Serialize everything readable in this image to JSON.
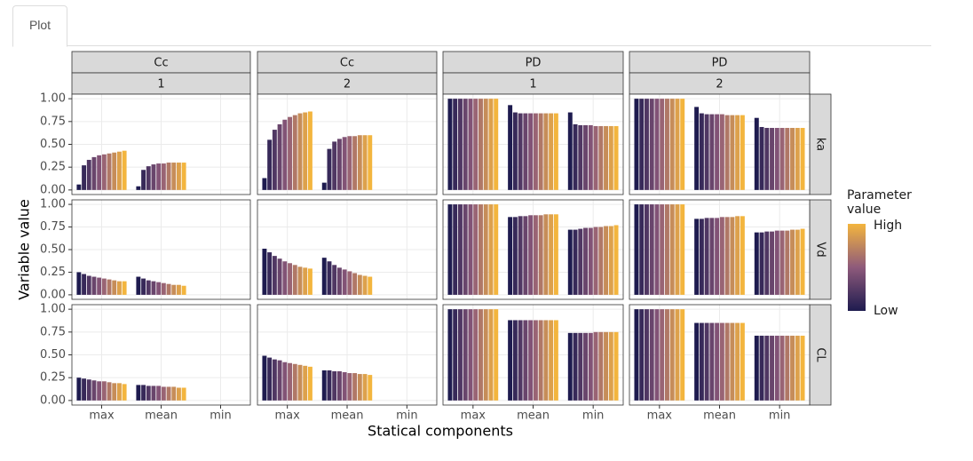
{
  "tab": "Plot",
  "chart_data": {
    "type": "bar",
    "x_label": "Statical components",
    "y_label": "Variable value",
    "columns": [
      {
        "label": "Cc",
        "sublabel": "1"
      },
      {
        "label": "Cc",
        "sublabel": "2"
      },
      {
        "label": "PD",
        "sublabel": "1"
      },
      {
        "label": "PD",
        "sublabel": "2"
      }
    ],
    "rows": [
      "ka",
      "Vd",
      "CL"
    ],
    "categories": [
      "max",
      "mean",
      "min"
    ],
    "ylim": [
      -0.05,
      1.05
    ],
    "yticks": [
      {
        "value": 0,
        "label": "0.00"
      },
      {
        "value": 0.25,
        "label": "0.25"
      },
      {
        "value": 0.5,
        "label": "0.50"
      },
      {
        "value": 0.75,
        "label": "0.75"
      },
      {
        "value": 1,
        "label": "1.00"
      }
    ],
    "grid": true,
    "legend": {
      "title": "Parameter value",
      "high": "High",
      "low": "Low",
      "colors": [
        "#1e1b4f",
        "#8e5a7b",
        "#f3b53e"
      ]
    },
    "panels": [
      [
        [
          [
            0.06,
            0.27,
            0.33,
            0.36,
            0.38,
            0.39,
            0.4,
            0.41,
            0.42,
            0.43
          ],
          [
            0.04,
            0.22,
            0.26,
            0.28,
            0.29,
            0.29,
            0.3,
            0.3,
            0.3,
            0.3
          ],
          [
            0,
            0,
            0,
            0,
            0,
            0,
            0,
            0,
            0,
            0
          ]
        ],
        [
          [
            0.13,
            0.55,
            0.66,
            0.72,
            0.77,
            0.8,
            0.82,
            0.84,
            0.85,
            0.86
          ],
          [
            0.08,
            0.45,
            0.53,
            0.56,
            0.58,
            0.59,
            0.59,
            0.6,
            0.6,
            0.6
          ],
          [
            0,
            0,
            0,
            0,
            0,
            0,
            0,
            0,
            0,
            0
          ]
        ],
        [
          [
            1,
            1,
            1,
            1,
            1,
            1,
            1,
            1,
            1,
            1
          ],
          [
            0.93,
            0.85,
            0.84,
            0.84,
            0.84,
            0.84,
            0.84,
            0.84,
            0.84,
            0.84
          ],
          [
            0.85,
            0.72,
            0.71,
            0.71,
            0.71,
            0.7,
            0.7,
            0.7,
            0.7,
            0.7
          ]
        ],
        [
          [
            1,
            1,
            1,
            1,
            1,
            1,
            1,
            1,
            1,
            1
          ],
          [
            0.91,
            0.84,
            0.83,
            0.83,
            0.83,
            0.83,
            0.82,
            0.82,
            0.82,
            0.82
          ],
          [
            0.79,
            0.69,
            0.68,
            0.68,
            0.68,
            0.68,
            0.68,
            0.68,
            0.68,
            0.68
          ]
        ]
      ],
      [
        [
          [
            0.25,
            0.23,
            0.21,
            0.2,
            0.19,
            0.18,
            0.17,
            0.16,
            0.15,
            0.15
          ],
          [
            0.2,
            0.18,
            0.16,
            0.15,
            0.14,
            0.13,
            0.12,
            0.11,
            0.11,
            0.1
          ],
          [
            0,
            0,
            0,
            0,
            0,
            0,
            0,
            0,
            0,
            0
          ]
        ],
        [
          [
            0.51,
            0.47,
            0.43,
            0.4,
            0.37,
            0.35,
            0.33,
            0.31,
            0.3,
            0.29
          ],
          [
            0.41,
            0.37,
            0.33,
            0.3,
            0.28,
            0.26,
            0.24,
            0.22,
            0.21,
            0.2
          ],
          [
            0,
            0,
            0,
            0,
            0,
            0,
            0,
            0,
            0,
            0
          ]
        ],
        [
          [
            1,
            1,
            1,
            1,
            1,
            1,
            1,
            1,
            1,
            1
          ],
          [
            0.86,
            0.86,
            0.87,
            0.87,
            0.88,
            0.88,
            0.88,
            0.89,
            0.89,
            0.89
          ],
          [
            0.72,
            0.72,
            0.73,
            0.74,
            0.74,
            0.75,
            0.75,
            0.76,
            0.76,
            0.77
          ]
        ],
        [
          [
            1,
            1,
            1,
            1,
            1,
            1,
            1,
            1,
            1,
            1
          ],
          [
            0.84,
            0.84,
            0.85,
            0.85,
            0.85,
            0.86,
            0.86,
            0.86,
            0.87,
            0.87
          ],
          [
            0.69,
            0.69,
            0.7,
            0.7,
            0.71,
            0.71,
            0.71,
            0.72,
            0.72,
            0.73
          ]
        ]
      ],
      [
        [
          [
            0.25,
            0.24,
            0.23,
            0.22,
            0.21,
            0.21,
            0.2,
            0.19,
            0.19,
            0.18
          ],
          [
            0.17,
            0.17,
            0.16,
            0.16,
            0.16,
            0.15,
            0.15,
            0.15,
            0.14,
            0.14
          ],
          [
            0,
            0,
            0,
            0,
            0,
            0,
            0,
            0,
            0,
            0
          ]
        ],
        [
          [
            0.49,
            0.47,
            0.45,
            0.44,
            0.42,
            0.41,
            0.4,
            0.39,
            0.38,
            0.37
          ],
          [
            0.33,
            0.33,
            0.32,
            0.32,
            0.31,
            0.3,
            0.3,
            0.29,
            0.29,
            0.28
          ],
          [
            0,
            0,
            0,
            0,
            0,
            0,
            0,
            0,
            0,
            0
          ]
        ],
        [
          [
            1,
            1,
            1,
            1,
            1,
            1,
            1,
            1,
            1,
            1
          ],
          [
            0.88,
            0.88,
            0.88,
            0.88,
            0.88,
            0.88,
            0.88,
            0.88,
            0.88,
            0.88
          ],
          [
            0.74,
            0.74,
            0.74,
            0.74,
            0.74,
            0.75,
            0.75,
            0.75,
            0.75,
            0.75
          ]
        ],
        [
          [
            1,
            1,
            1,
            1,
            1,
            1,
            1,
            1,
            1,
            1
          ],
          [
            0.85,
            0.85,
            0.85,
            0.85,
            0.85,
            0.85,
            0.85,
            0.85,
            0.85,
            0.85
          ],
          [
            0.71,
            0.71,
            0.71,
            0.71,
            0.71,
            0.71,
            0.71,
            0.71,
            0.71,
            0.71
          ]
        ]
      ]
    ]
  }
}
